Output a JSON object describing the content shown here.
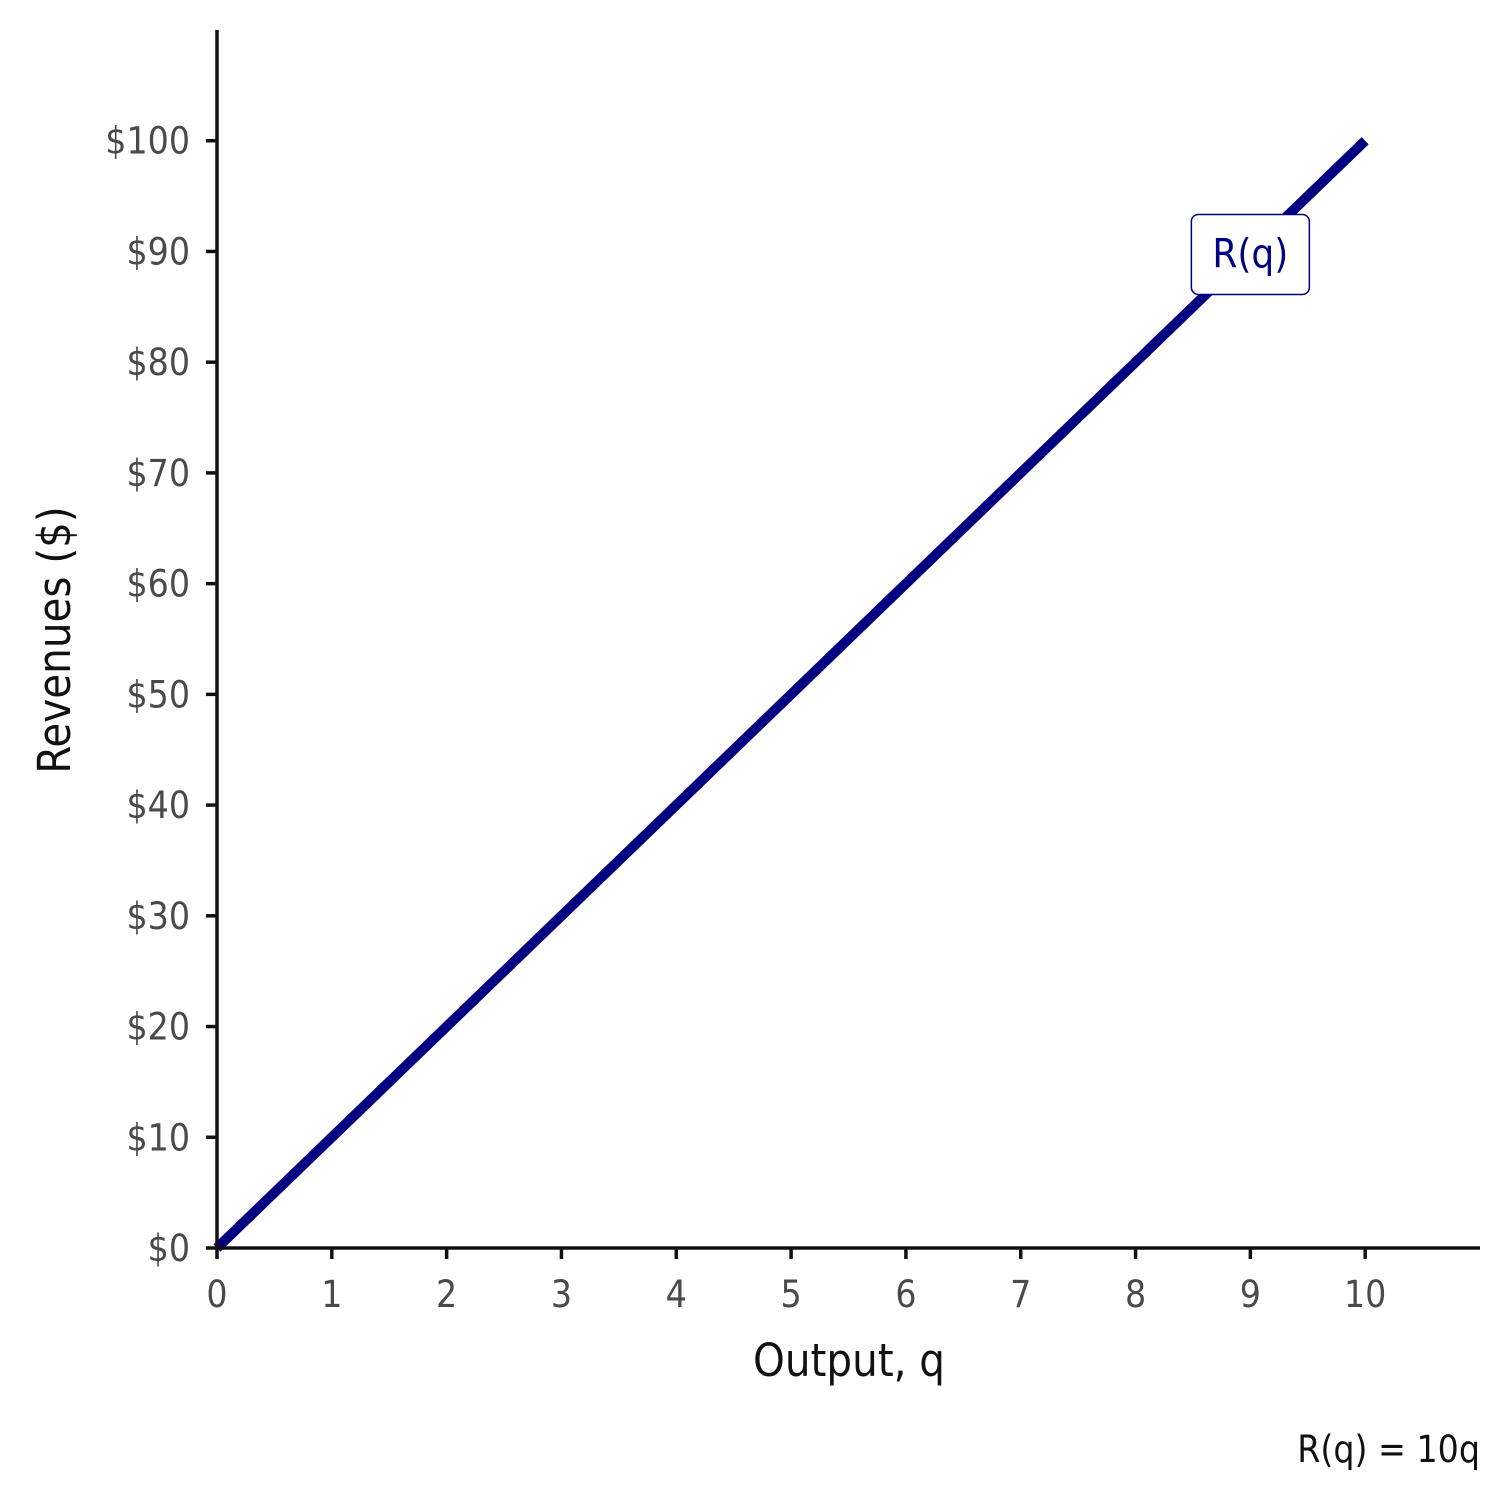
{
  "chart_data": {
    "type": "line",
    "xlabel": "Output, q",
    "ylabel": "Revenues ($)",
    "x_ticks": [
      0,
      1,
      2,
      3,
      4,
      5,
      6,
      7,
      8,
      9,
      10
    ],
    "x_tick_labels": [
      "0",
      "1",
      "2",
      "3",
      "4",
      "5",
      "6",
      "7",
      "8",
      "9",
      "10"
    ],
    "y_ticks": [
      0,
      10,
      20,
      30,
      40,
      50,
      60,
      70,
      80,
      90,
      100
    ],
    "y_tick_labels": [
      "$0",
      "$10",
      "$20",
      "$30",
      "$40",
      "$50",
      "$60",
      "$70",
      "$80",
      "$90",
      "$100"
    ],
    "xlim": [
      0,
      11
    ],
    "ylim": [
      0,
      110
    ],
    "grid": false,
    "series": [
      {
        "name": "R(q)",
        "color": "#000080",
        "x": [
          0,
          10
        ],
        "y": [
          0,
          100
        ]
      }
    ],
    "annotations": [
      {
        "text": "R(q)",
        "x": 9,
        "y": 90
      }
    ],
    "caption": "R(q) = 10q"
  }
}
